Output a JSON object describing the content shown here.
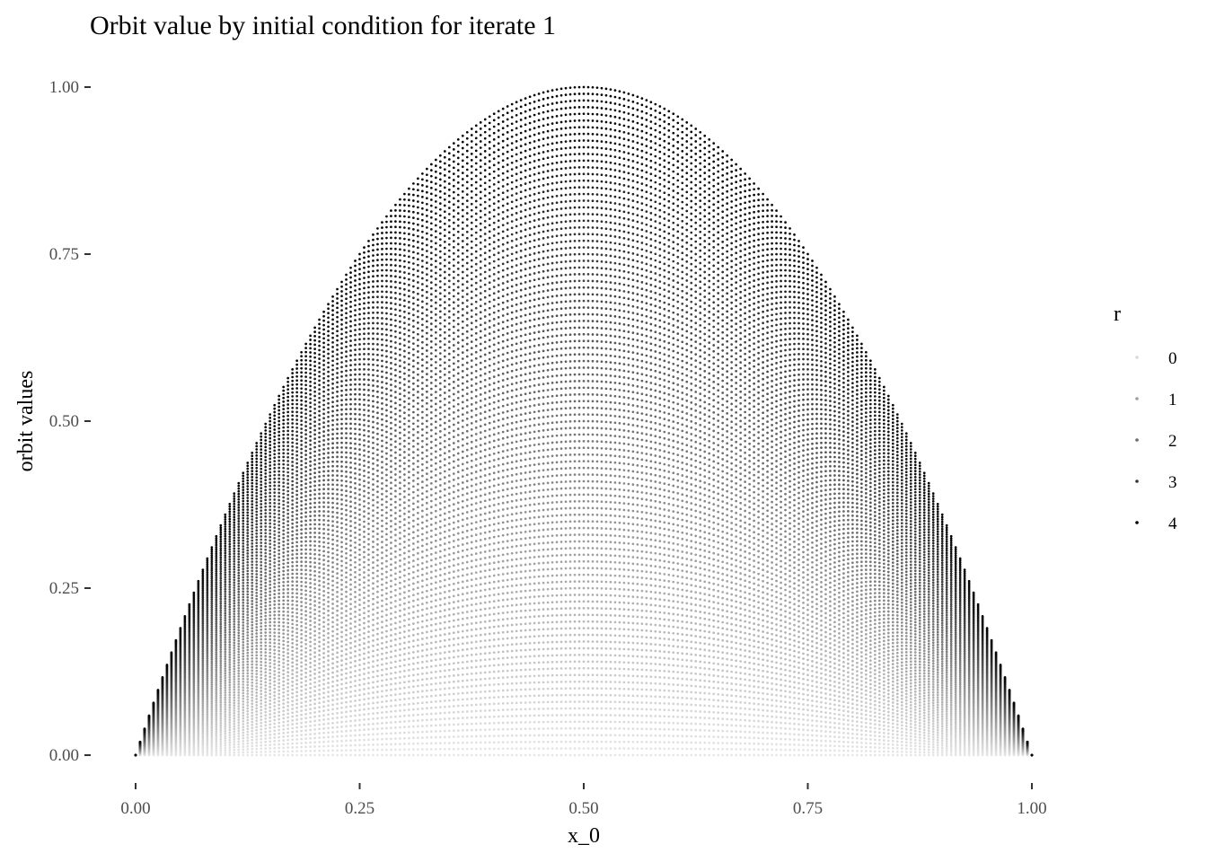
{
  "chart_data": {
    "type": "scatter",
    "title": "Orbit value by initial condition for iterate 1",
    "xlabel": "x_0",
    "ylabel": "orbit values",
    "xlim": [
      0,
      1
    ],
    "ylim": [
      0,
      1
    ],
    "x_ticks": [
      0,
      0.25,
      0.5,
      0.75,
      1
    ],
    "x_tick_labels": [
      "0.00",
      "0.25",
      "0.50",
      "0.75",
      "1.00"
    ],
    "y_ticks": [
      0,
      0.25,
      0.5,
      0.75,
      1
    ],
    "y_tick_labels": [
      "0.00",
      "0.25",
      "0.50",
      "0.75",
      "1.00"
    ],
    "grid": false,
    "legend": {
      "title": "r",
      "position": "right",
      "entries": [
        {
          "label": "0",
          "value": 0,
          "color": "#d9d9d9"
        },
        {
          "label": "1",
          "value": 1,
          "color": "#9e9e9e"
        },
        {
          "label": "2",
          "value": 2,
          "color": "#6b6b6b"
        },
        {
          "label": "3",
          "value": 3,
          "color": "#363636"
        },
        {
          "label": "4",
          "value": 4,
          "color": "#000000"
        }
      ]
    },
    "model": "orbit = r * x_0 * (1 - x_0)",
    "x_start": 0,
    "x_end": 1,
    "x_step": 0.005,
    "r_start": 0,
    "r_end": 4,
    "r_step": 0.04,
    "color_low": "#e6e6e6",
    "color_high": "#000000"
  }
}
